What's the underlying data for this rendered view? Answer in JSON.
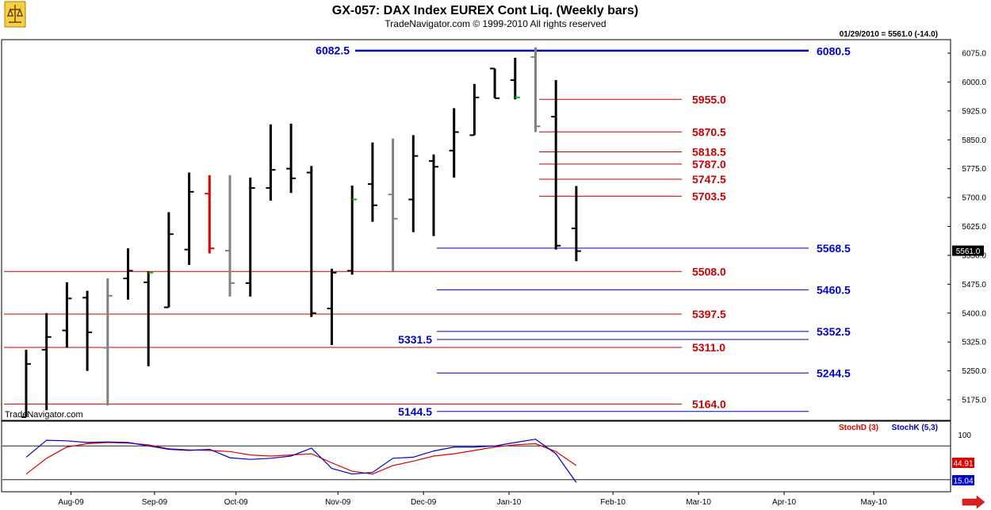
{
  "header": {
    "title": "GX-057:  DAX Index EUREX Cont Liq.  (Weekly bars)",
    "subtitle": "TradeNavigator.com © 1999-2010 All rights reserved",
    "last_quote": "01/29/2010 = 5561.0 (-14.0)",
    "watermark": "TradeNavigator.com"
  },
  "colors": {
    "bar": "#000000",
    "bar_gray": "#808080",
    "bar_red": "#e00000",
    "close_green": "#00c000",
    "blue_level": "#0000cc",
    "red_level": "#cc0000",
    "stoch_d": "#e00000",
    "stoch_k": "#0000cc"
  },
  "chart_data": [
    {
      "type": "bar",
      "subtype": "ohlc",
      "title": "GX-057:  DAX Index EUREX Cont Liq.  (Weekly bars)",
      "price_axis": {
        "ylim": [
          5120,
          6100
        ],
        "ticks": [
          "6075.0",
          "6000.0",
          "5925.0",
          "5850.0",
          "5775.0",
          "5700.0",
          "5625.0",
          "5550.0",
          "5475.0",
          "5400.0",
          "5325.0",
          "5250.0",
          "5175.0"
        ],
        "tick_values": [
          6075,
          6000,
          5925,
          5850,
          5775,
          5700,
          5625,
          5550,
          5475,
          5400,
          5325,
          5250,
          5175
        ],
        "last_price_label": "5561.0"
      },
      "x_axis": {
        "ticks": [
          "Aug-09",
          "Sep-09",
          "Oct-09",
          "Nov-09",
          "Dec-09",
          "Jan-10",
          "Feb-10",
          "Mar-10",
          "Apr-10",
          "May-10"
        ],
        "tick_week_index": [
          2.2,
          6.3,
          10.3,
          15.3,
          19.5,
          23.7,
          28.8,
          33.0,
          37.2,
          41.6
        ]
      },
      "bars": [
        {
          "w": 0,
          "o": 5130,
          "h": 5305,
          "l": 5130,
          "c": 5268,
          "color": "black"
        },
        {
          "w": 1,
          "o": 5305,
          "h": 5400,
          "l": 5148,
          "c": 5338,
          "color": "black"
        },
        {
          "w": 2,
          "o": 5355,
          "h": 5480,
          "l": 5310,
          "c": 5438,
          "color": "black"
        },
        {
          "w": 3,
          "o": 5440,
          "h": 5458,
          "l": 5250,
          "c": 5350,
          "color": "black"
        },
        {
          "w": 4,
          "o": 5310,
          "h": 5490,
          "l": 5160,
          "c": 5445,
          "color": "gray"
        },
        {
          "w": 5,
          "o": 5490,
          "h": 5568,
          "l": 5435,
          "c": 5510,
          "color": "black"
        },
        {
          "w": 6,
          "o": 5480,
          "h": 5508,
          "l": 5262,
          "c": 5505,
          "color": "black",
          "close_color": "green"
        },
        {
          "w": 7,
          "o": 5415,
          "h": 5662,
          "l": 5415,
          "c": 5605,
          "color": "black"
        },
        {
          "w": 8,
          "o": 5565,
          "h": 5765,
          "l": 5525,
          "c": 5715,
          "color": "black"
        },
        {
          "w": 9,
          "o": 5710,
          "h": 5758,
          "l": 5555,
          "c": 5568,
          "color": "red"
        },
        {
          "w": 10,
          "o": 5562,
          "h": 5758,
          "l": 5443,
          "c": 5478,
          "color": "gray"
        },
        {
          "w": 11,
          "o": 5478,
          "h": 5752,
          "l": 5443,
          "c": 5725,
          "color": "black"
        },
        {
          "w": 12,
          "o": 5725,
          "h": 5890,
          "l": 5692,
          "c": 5772,
          "color": "black"
        },
        {
          "w": 13,
          "o": 5775,
          "h": 5892,
          "l": 5712,
          "c": 5750,
          "color": "black"
        },
        {
          "w": 14,
          "o": 5765,
          "h": 5782,
          "l": 5390,
          "c": 5400,
          "color": "black"
        },
        {
          "w": 15,
          "o": 5412,
          "h": 5515,
          "l": 5317,
          "c": 5505,
          "color": "black"
        },
        {
          "w": 16,
          "o": 5510,
          "h": 5731,
          "l": 5500,
          "c": 5695,
          "color": "black",
          "close_color": "green"
        },
        {
          "w": 17,
          "o": 5735,
          "h": 5843,
          "l": 5637,
          "c": 5680,
          "color": "black"
        },
        {
          "w": 18,
          "o": 5708,
          "h": 5853,
          "l": 5508,
          "c": 5645,
          "color": "gray"
        },
        {
          "w": 19,
          "o": 5695,
          "h": 5862,
          "l": 5610,
          "c": 5808,
          "color": "black"
        },
        {
          "w": 20,
          "o": 5795,
          "h": 5812,
          "l": 5600,
          "c": 5780,
          "color": "black"
        },
        {
          "w": 21,
          "o": 5822,
          "h": 5932,
          "l": 5752,
          "c": 5870,
          "color": "black"
        },
        {
          "w": 22,
          "o": 5862,
          "h": 5995,
          "l": 5862,
          "c": 5960,
          "color": "black"
        },
        {
          "w": 23,
          "o": 6035,
          "h": 6035,
          "l": 5958,
          "c": 5958,
          "color": "black"
        },
        {
          "w": 24,
          "o": 6005,
          "h": 6063,
          "l": 5955,
          "c": 5960,
          "color": "black",
          "close_color": "green"
        },
        {
          "w": 25,
          "o": 6065,
          "h": 6090,
          "l": 5870,
          "c": 5885,
          "color": "gray"
        },
        {
          "w": 26,
          "o": 5910,
          "h": 6005,
          "l": 5565,
          "c": 5575,
          "color": "black"
        },
        {
          "w": 27,
          "o": 5620,
          "h": 5730,
          "l": 5535,
          "c": 5561,
          "color": "black"
        }
      ],
      "levels": [
        {
          "value": "6082.5",
          "price": 6082.5,
          "color": "blue",
          "side": "left"
        },
        {
          "value": "6080.5",
          "price": 6080.5,
          "color": "blue",
          "side": "right"
        },
        {
          "value": "5955.0",
          "price": 5955.0,
          "color": "red",
          "side": "right"
        },
        {
          "value": "5870.5",
          "price": 5870.5,
          "color": "red",
          "side": "right"
        },
        {
          "value": "5818.5",
          "price": 5818.5,
          "color": "red",
          "side": "right"
        },
        {
          "value": "5787.0",
          "price": 5787.0,
          "color": "red",
          "side": "right"
        },
        {
          "value": "5747.5",
          "price": 5747.5,
          "color": "red",
          "side": "right"
        },
        {
          "value": "5703.5",
          "price": 5703.5,
          "color": "red",
          "side": "right"
        },
        {
          "value": "5568.5",
          "price": 5568.5,
          "color": "blue",
          "side": "right"
        },
        {
          "value": "5508.0",
          "price": 5508.0,
          "color": "red",
          "side": "right"
        },
        {
          "value": "5460.5",
          "price": 5460.5,
          "color": "blue",
          "side": "right"
        },
        {
          "value": "5397.5",
          "price": 5397.5,
          "color": "red",
          "side": "right"
        },
        {
          "value": "5352.5",
          "price": 5352.5,
          "color": "blue",
          "side": "right"
        },
        {
          "value": "5331.5",
          "price": 5331.5,
          "color": "blue",
          "side": "left"
        },
        {
          "value": "5311.0",
          "price": 5311.0,
          "color": "red",
          "side": "right"
        },
        {
          "value": "5244.5",
          "price": 5244.5,
          "color": "blue",
          "side": "right"
        },
        {
          "value": "5164.0",
          "price": 5164.0,
          "color": "red",
          "side": "right"
        },
        {
          "value": "5144.5",
          "price": 5144.5,
          "color": "blue",
          "side": "left"
        }
      ]
    },
    {
      "type": "line",
      "series": [
        {
          "name": "StochD (3)",
          "color": "#e00000",
          "last_value_label": "44.91",
          "values": [
            30,
            58,
            78,
            84,
            86,
            85,
            82,
            75,
            73,
            72,
            70,
            64,
            62,
            64,
            66,
            50,
            35,
            30,
            45,
            53,
            62,
            66,
            72,
            78,
            82,
            84,
            70,
            45
          ]
        },
        {
          "name": "StochK (5,3)",
          "color": "#0000cc",
          "last_value_label": "15.04",
          "values": [
            60,
            90,
            89,
            86,
            87,
            86,
            80,
            74,
            72,
            74,
            59,
            56,
            58,
            62,
            76,
            40,
            30,
            33,
            58,
            60,
            71,
            78,
            78,
            80,
            86,
            92,
            66,
            15
          ]
        }
      ],
      "ylim": [
        0,
        110
      ],
      "reference_lines": [
        80,
        20
      ],
      "ticks": [
        "100"
      ]
    }
  ]
}
